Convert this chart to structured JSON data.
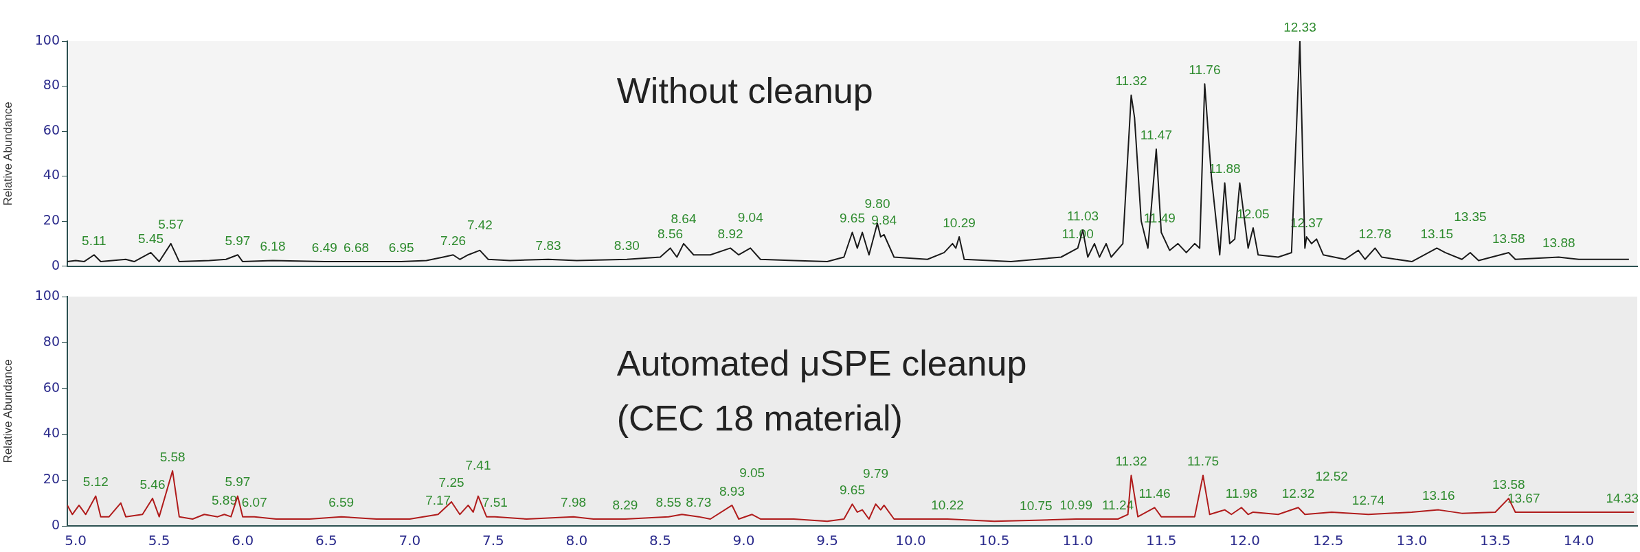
{
  "chart_data": [
    {
      "type": "line",
      "title": "Without cleanup",
      "ylabel": "Relative Abundance",
      "tick_labels": "y",
      "marker": "none",
      "line_style": "solid",
      "legend": false,
      "x": [
        4.95,
        5.0,
        5.05,
        5.11,
        5.15,
        5.3,
        5.35,
        5.45,
        5.5,
        5.57,
        5.62,
        5.8,
        5.9,
        5.97,
        6.0,
        6.18,
        6.49,
        6.68,
        6.95,
        7.1,
        7.2,
        7.26,
        7.3,
        7.35,
        7.42,
        7.47,
        7.6,
        7.83,
        8.0,
        8.3,
        8.5,
        8.56,
        8.6,
        8.64,
        8.7,
        8.8,
        8.92,
        8.97,
        9.04,
        9.1,
        9.3,
        9.5,
        9.6,
        9.65,
        9.68,
        9.71,
        9.75,
        9.8,
        9.82,
        9.84,
        9.9,
        10.1,
        10.2,
        10.25,
        10.27,
        10.29,
        10.32,
        10.6,
        10.9,
        11.0,
        11.03,
        11.06,
        11.1,
        11.13,
        11.17,
        11.2,
        11.27,
        11.32,
        11.34,
        11.38,
        11.42,
        11.47,
        11.5,
        11.55,
        11.6,
        11.65,
        11.7,
        11.73,
        11.76,
        11.8,
        11.85,
        11.88,
        11.91,
        11.94,
        11.97,
        12.02,
        12.05,
        12.08,
        12.2,
        12.28,
        12.33,
        12.36,
        12.37,
        12.4,
        12.43,
        12.47,
        12.6,
        12.68,
        12.72,
        12.78,
        12.82,
        13.0,
        13.15,
        13.2,
        13.3,
        13.35,
        13.4,
        13.58,
        13.62,
        13.88,
        14.0,
        14.3
      ],
      "series": [
        {
          "color": "#1a1a1a",
          "values": [
            2,
            2.5,
            2,
            5,
            2,
            3,
            2,
            6,
            2,
            10,
            2,
            2.5,
            3,
            5,
            2,
            2.5,
            2,
            2,
            2,
            2.5,
            4,
            5,
            3,
            5,
            7,
            3,
            2.5,
            3,
            2.5,
            3,
            4,
            8,
            4,
            10,
            5,
            5,
            8,
            5,
            8,
            3,
            2.5,
            2,
            4,
            15,
            8,
            15,
            5,
            19,
            13,
            14,
            4,
            3,
            6,
            10,
            8,
            13,
            3,
            2,
            4,
            8,
            16,
            4,
            10,
            4,
            10,
            4,
            10,
            76,
            66,
            20,
            8,
            52,
            15,
            7,
            10,
            6,
            10,
            8,
            81,
            40,
            5,
            37,
            10,
            12,
            37,
            8,
            17,
            5,
            4,
            6,
            100,
            8,
            13,
            10,
            12,
            5,
            3,
            7,
            3,
            8,
            4,
            2,
            8,
            6,
            3,
            6,
            2.5,
            6,
            3,
            4,
            3,
            3
          ]
        }
      ],
      "xlim": [
        4.95,
        14.35
      ],
      "ylim": [
        0,
        100
      ],
      "yticks": [
        0,
        20,
        40,
        60,
        80,
        100
      ],
      "annotations": [
        {
          "text": "5.11",
          "x": 5.11,
          "y": 5
        },
        {
          "text": "5.45",
          "x": 5.45,
          "y": 6
        },
        {
          "text": "5.57",
          "x": 5.57,
          "y": 10
        },
        {
          "text": "5.97",
          "x": 5.97,
          "y": 5
        },
        {
          "text": "6.18",
          "x": 6.18,
          "y": 2.5
        },
        {
          "text": "6.49",
          "x": 6.49,
          "y": 2
        },
        {
          "text": "6.68",
          "x": 6.68,
          "y": 2
        },
        {
          "text": "6.95",
          "x": 6.95,
          "y": 2
        },
        {
          "text": "7.26",
          "x": 7.26,
          "y": 5
        },
        {
          "text": "7.42",
          "x": 7.42,
          "y": 7
        },
        {
          "text": "7.83",
          "x": 7.83,
          "y": 3
        },
        {
          "text": "8.30",
          "x": 8.3,
          "y": 3
        },
        {
          "text": "8.56",
          "x": 8.56,
          "y": 8
        },
        {
          "text": "8.64",
          "x": 8.64,
          "y": 10
        },
        {
          "text": "8.92",
          "x": 8.92,
          "y": 8
        },
        {
          "text": "9.04",
          "x": 9.04,
          "y": 8
        },
        {
          "text": "9.65",
          "x": 9.65,
          "y": 15
        },
        {
          "text": "9.80",
          "x": 9.8,
          "y": 19
        },
        {
          "text": "9.84",
          "x": 9.84,
          "y": 14
        },
        {
          "text": "10.29",
          "x": 10.29,
          "y": 13
        },
        {
          "text": "11.00",
          "x": 11.0,
          "y": 8
        },
        {
          "text": "11.03",
          "x": 11.03,
          "y": 16
        },
        {
          "text": "11.32",
          "x": 11.32,
          "y": 76
        },
        {
          "text": "11.47",
          "x": 11.47,
          "y": 52
        },
        {
          "text": "11.49",
          "x": 11.49,
          "y": 15
        },
        {
          "text": "11.76",
          "x": 11.76,
          "y": 81
        },
        {
          "text": "11.88",
          "x": 11.88,
          "y": 37
        },
        {
          "text": "12.05",
          "x": 12.05,
          "y": 17
        },
        {
          "text": "12.33",
          "x": 12.33,
          "y": 100
        },
        {
          "text": "12.37",
          "x": 12.37,
          "y": 13
        },
        {
          "text": "12.78",
          "x": 12.78,
          "y": 8
        },
        {
          "text": "13.15",
          "x": 13.15,
          "y": 8
        },
        {
          "text": "13.35",
          "x": 13.35,
          "y": 6
        },
        {
          "text": "13.58",
          "x": 13.58,
          "y": 6
        },
        {
          "text": "13.88",
          "x": 13.88,
          "y": 4
        }
      ]
    },
    {
      "type": "line",
      "title": "Automated μSPE cleanup\n(CEC 18 material)",
      "ylabel": "Relative Abundance",
      "marker": "none",
      "line_style": "solid",
      "legend": false,
      "x": [
        4.95,
        4.98,
        5.02,
        5.06,
        5.12,
        5.15,
        5.2,
        5.27,
        5.3,
        5.4,
        5.46,
        5.5,
        5.58,
        5.62,
        5.7,
        5.77,
        5.85,
        5.89,
        5.93,
        5.97,
        6.0,
        6.07,
        6.2,
        6.4,
        6.59,
        6.8,
        7.0,
        7.17,
        7.25,
        7.3,
        7.35,
        7.38,
        7.41,
        7.46,
        7.51,
        7.7,
        7.98,
        8.1,
        8.29,
        8.55,
        8.63,
        8.73,
        8.8,
        8.93,
        8.97,
        9.05,
        9.1,
        9.3,
        9.5,
        9.6,
        9.65,
        9.68,
        9.71,
        9.75,
        9.79,
        9.82,
        9.84,
        9.9,
        10.22,
        10.5,
        10.75,
        10.99,
        11.24,
        11.3,
        11.32,
        11.36,
        11.46,
        11.5,
        11.7,
        11.75,
        11.79,
        11.88,
        11.92,
        11.98,
        12.02,
        12.05,
        12.2,
        12.32,
        12.36,
        12.52,
        12.74,
        13.0,
        13.16,
        13.3,
        13.5,
        13.58,
        13.62,
        13.67,
        14.0,
        14.33
      ],
      "series": [
        {
          "color": "#b01c1c",
          "values": [
            9,
            5,
            9,
            5,
            13,
            4,
            4,
            10,
            4,
            5,
            12,
            4,
            24,
            4,
            3,
            5,
            4,
            5,
            4,
            13,
            4,
            4,
            3,
            3,
            4,
            3,
            3,
            5,
            10.5,
            5,
            9,
            6,
            13,
            4,
            4,
            3,
            4,
            3,
            3,
            4,
            5,
            4,
            3,
            9,
            3,
            5,
            3,
            3,
            2,
            3,
            9.5,
            6,
            7,
            3,
            9.5,
            7,
            9,
            3,
            3,
            2,
            2.5,
            3,
            3,
            5,
            22,
            4,
            8,
            4,
            4,
            22,
            5,
            7,
            5,
            8,
            5,
            6,
            5,
            8,
            5,
            6,
            5,
            6,
            7,
            5.5,
            6,
            12,
            6,
            6,
            6,
            6
          ]
        }
      ],
      "xlim": [
        4.95,
        14.35
      ],
      "xticks": [
        {
          "value": 5,
          "label": "5.0"
        },
        {
          "value": 5.5,
          "label": "5.5"
        },
        {
          "value": 6,
          "label": "6.0"
        },
        {
          "value": 6.5,
          "label": "6.5"
        },
        {
          "value": 7,
          "label": "7.0"
        },
        {
          "value": 7.5,
          "label": "7.5"
        },
        {
          "value": 8,
          "label": "8.0"
        },
        {
          "value": 8.5,
          "label": "8.5"
        },
        {
          "value": 9,
          "label": "9.0"
        },
        {
          "value": 9.5,
          "label": "9.5"
        },
        {
          "value": 10,
          "label": "10.0"
        },
        {
          "value": 10.5,
          "label": "10.5"
        },
        {
          "value": 11,
          "label": "11.0"
        },
        {
          "value": 11.5,
          "label": "11.5"
        },
        {
          "value": 12,
          "label": "12.0"
        },
        {
          "value": 12.5,
          "label": "12.5"
        },
        {
          "value": 13,
          "label": "13.0"
        },
        {
          "value": 13.5,
          "label": "13.5"
        },
        {
          "value": 14,
          "label": "14.0"
        }
      ],
      "ylim": [
        0,
        100
      ],
      "yticks": [
        0,
        20,
        40,
        60,
        80,
        100
      ],
      "annotations": [
        {
          "text": "5.12",
          "x": 5.12,
          "y": 13
        },
        {
          "text": "5.46",
          "x": 5.46,
          "y": 12
        },
        {
          "text": "5.58",
          "x": 5.58,
          "y": 24
        },
        {
          "text": "5.89",
          "x": 5.89,
          "y": 5
        },
        {
          "text": "5.97",
          "x": 5.97,
          "y": 13
        },
        {
          "text": "6.07",
          "x": 6.07,
          "y": 4
        },
        {
          "text": "6.59",
          "x": 6.59,
          "y": 4
        },
        {
          "text": "7.17",
          "x": 7.17,
          "y": 5
        },
        {
          "text": "7.25",
          "x": 7.25,
          "y": 10.5
        },
        {
          "text": "7.41",
          "x": 7.41,
          "y": 13
        },
        {
          "text": "7.51",
          "x": 7.51,
          "y": 4
        },
        {
          "text": "7.98",
          "x": 7.98,
          "y": 4
        },
        {
          "text": "8.29",
          "x": 8.29,
          "y": 3
        },
        {
          "text": "8.55",
          "x": 8.55,
          "y": 4
        },
        {
          "text": "8.73",
          "x": 8.73,
          "y": 4
        },
        {
          "text": "8.93",
          "x": 8.93,
          "y": 9
        },
        {
          "text": "9.05",
          "x": 9.05,
          "y": 5
        },
        {
          "text": "9.65",
          "x": 9.65,
          "y": 9.5
        },
        {
          "text": "9.79",
          "x": 9.79,
          "y": 9.5
        },
        {
          "text": "10.22",
          "x": 10.22,
          "y": 3
        },
        {
          "text": "10.75",
          "x": 10.75,
          "y": 2.5
        },
        {
          "text": "10.99",
          "x": 10.99,
          "y": 3
        },
        {
          "text": "11.24",
          "x": 11.24,
          "y": 3
        },
        {
          "text": "11.32",
          "x": 11.32,
          "y": 22
        },
        {
          "text": "11.46",
          "x": 11.46,
          "y": 8
        },
        {
          "text": "11.75",
          "x": 11.75,
          "y": 22
        },
        {
          "text": "11.98",
          "x": 11.98,
          "y": 8
        },
        {
          "text": "12.32",
          "x": 12.32,
          "y": 8
        },
        {
          "text": "12.52",
          "x": 12.52,
          "y": 6
        },
        {
          "text": "12.74",
          "x": 12.74,
          "y": 5
        },
        {
          "text": "13.16",
          "x": 13.16,
          "y": 7
        },
        {
          "text": "13.58",
          "x": 13.58,
          "y": 12
        },
        {
          "text": "13.67",
          "x": 13.67,
          "y": 6
        },
        {
          "text": "14.33",
          "x": 14.33,
          "y": 6
        }
      ]
    }
  ]
}
